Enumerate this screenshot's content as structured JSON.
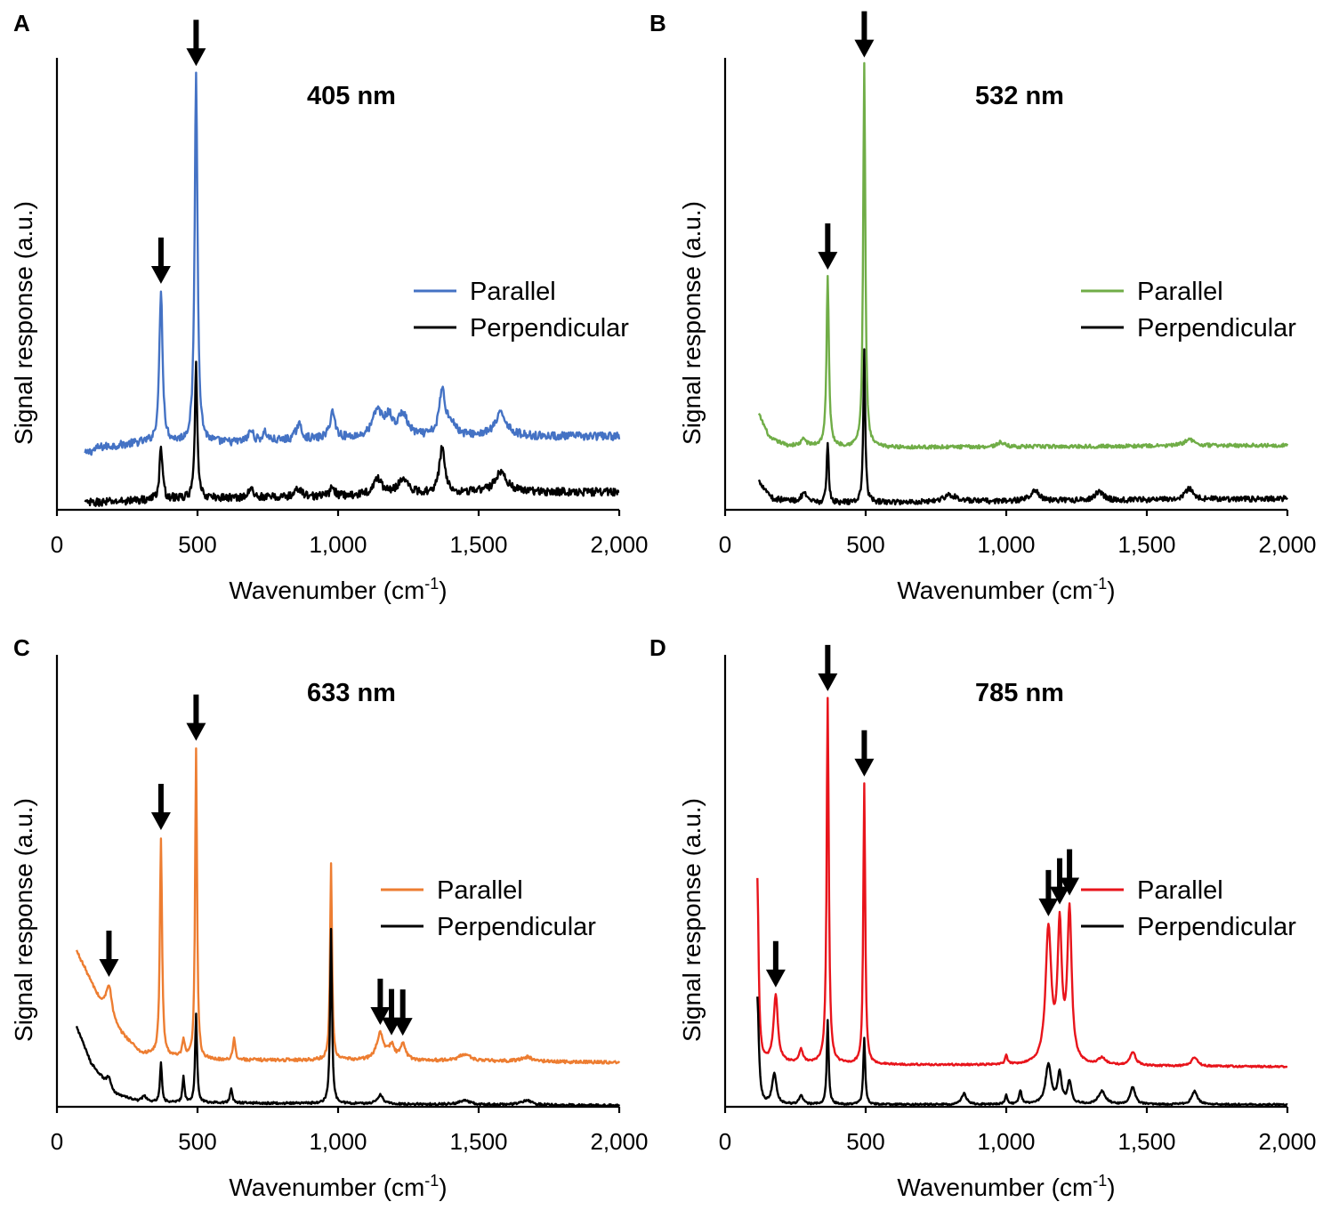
{
  "figure": {
    "background": "#ffffff",
    "arrow_color": "#000000"
  },
  "chart_data": [
    {
      "type": "line",
      "panel": "A",
      "title": "405 nm",
      "xlabel": "Wavenumber (cm",
      "xlabel_sup": "-1",
      "xlabel_close": ")",
      "ylabel": "Signal response (a.u.)",
      "xlim": [
        0,
        2000
      ],
      "xticks": [
        0,
        500,
        1000,
        1500,
        2000
      ],
      "xtick_labels": [
        "0",
        "500",
        "1,000",
        "1,500",
        "2,000"
      ],
      "ylim": [
        0,
        100
      ],
      "x_range": [
        100,
        2000
      ],
      "legend": [
        "Parallel",
        "Perpendicular"
      ],
      "series": [
        {
          "name": "Parallel",
          "color": "#4472c4",
          "baseline": 12,
          "noise": 0.9,
          "baseline_points": [
            [
              100,
              12.5
            ],
            [
              150,
              14
            ],
            [
              300,
              15
            ],
            [
              600,
              15
            ],
            [
              1000,
              16
            ],
            [
              1500,
              16.5
            ],
            [
              2000,
              16.5
            ]
          ],
          "peaks": [
            [
              370,
              34,
              7
            ],
            [
              495,
              83,
              6
            ],
            [
              690,
              2.5,
              10
            ],
            [
              740,
              2,
              10
            ],
            [
              860,
              3.5,
              12
            ],
            [
              980,
              6,
              11
            ],
            [
              1140,
              6,
              20
            ],
            [
              1180,
              4,
              15
            ],
            [
              1230,
              5,
              20
            ],
            [
              1370,
              10,
              12
            ],
            [
              1400,
              3,
              20
            ],
            [
              1580,
              5,
              25
            ]
          ]
        },
        {
          "name": "Perpendicular",
          "color": "#000000",
          "baseline": 2,
          "noise": 0.9,
          "baseline_points": [
            [
              100,
              1.5
            ],
            [
              400,
              2.5
            ],
            [
              1000,
              3
            ],
            [
              1500,
              4
            ],
            [
              2000,
              4
            ]
          ],
          "peaks": [
            [
              370,
              12,
              6
            ],
            [
              495,
              30,
              5
            ],
            [
              690,
              2,
              10
            ],
            [
              860,
              2,
              12
            ],
            [
              980,
              2,
              10
            ],
            [
              1140,
              3.5,
              20
            ],
            [
              1230,
              3.5,
              20
            ],
            [
              1370,
              10,
              12
            ],
            [
              1580,
              4.5,
              25
            ]
          ]
        }
      ],
      "arrows": [
        370,
        495
      ]
    },
    {
      "type": "line",
      "panel": "B",
      "title": "532 nm",
      "xlabel": "Wavenumber (cm",
      "xlabel_sup": "-1",
      "xlabel_close": ")",
      "ylabel": "Signal response (a.u.)",
      "xlim": [
        0,
        2000
      ],
      "xticks": [
        0,
        500,
        1000,
        1500,
        2000
      ],
      "xtick_labels": [
        "0",
        "500",
        "1,000",
        "1,500",
        "2,000"
      ],
      "ylim": [
        0,
        100
      ],
      "x_range": [
        120,
        2000
      ],
      "legend": [
        "Parallel",
        "Perpendicular"
      ],
      "series": [
        {
          "name": "Parallel",
          "color": "#70ad47",
          "baseline": 14,
          "noise": 0.4,
          "baseline_points": [
            [
              120,
              21.5
            ],
            [
              160,
              16
            ],
            [
              220,
              14.5
            ],
            [
              500,
              14
            ],
            [
              2000,
              14.5
            ]
          ],
          "peaks": [
            [
              365,
              38,
              5
            ],
            [
              495,
              86,
              4.5
            ],
            [
              280,
              1.5,
              10
            ],
            [
              980,
              1,
              15
            ],
            [
              1650,
              1.5,
              20
            ]
          ]
        },
        {
          "name": "Perpendicular",
          "color": "#000000",
          "baseline": 2,
          "noise": 0.6,
          "baseline_points": [
            [
              120,
              6.5
            ],
            [
              170,
              2.5
            ],
            [
              300,
              1.5
            ],
            [
              2000,
              2.5
            ]
          ],
          "peaks": [
            [
              365,
              14,
              4
            ],
            [
              495,
              34,
              4
            ],
            [
              280,
              2,
              12
            ],
            [
              800,
              1.5,
              30
            ],
            [
              1100,
              2.5,
              18
            ],
            [
              1330,
              2,
              18
            ],
            [
              1650,
              2.5,
              18
            ]
          ]
        }
      ],
      "arrows": [
        365,
        495
      ]
    },
    {
      "type": "line",
      "panel": "C",
      "title": "633 nm",
      "xlabel": "Wavenumber (cm",
      "xlabel_sup": "-1",
      "xlabel_close": ")",
      "ylabel": "Signal response (a.u.)",
      "xlim": [
        0,
        2000
      ],
      "xticks": [
        0,
        500,
        1000,
        1500,
        2000
      ],
      "xtick_labels": [
        "0",
        "500",
        "1,000",
        "1,500",
        "2,000"
      ],
      "ylim": [
        0,
        100
      ],
      "x_range": [
        70,
        2000
      ],
      "legend": [
        "Parallel",
        "Perpendicular"
      ],
      "series": [
        {
          "name": "Parallel",
          "color": "#ed7d31",
          "baseline": 10,
          "noise": 0.35,
          "baseline_points": [
            [
              70,
              35
            ],
            [
              100,
              31
            ],
            [
              150,
              24
            ],
            [
              220,
              17
            ],
            [
              300,
              12
            ],
            [
              500,
              10.5
            ],
            [
              1000,
              10.5
            ],
            [
              2000,
              10
            ]
          ],
          "peaks": [
            [
              185,
              7,
              12
            ],
            [
              370,
              49,
              4.5
            ],
            [
              450,
              4,
              5
            ],
            [
              495,
              70,
              4
            ],
            [
              630,
              5,
              5
            ],
            [
              975,
              44,
              4
            ],
            [
              1150,
              6,
              15
            ],
            [
              1190,
              3,
              12
            ],
            [
              1230,
              3.5,
              12
            ],
            [
              1450,
              1.5,
              25
            ],
            [
              1670,
              1,
              25
            ]
          ]
        },
        {
          "name": "Perpendicular",
          "color": "#000000",
          "baseline": 0.5,
          "noise": 0.25,
          "baseline_points": [
            [
              70,
              18
            ],
            [
              120,
              10
            ],
            [
              200,
              3
            ],
            [
              300,
              1
            ],
            [
              2000,
              0.3
            ]
          ],
          "peaks": [
            [
              185,
              2.5,
              10
            ],
            [
              310,
              1.5,
              10
            ],
            [
              370,
              9,
              4
            ],
            [
              450,
              6,
              4
            ],
            [
              495,
              20,
              4
            ],
            [
              620,
              3,
              5
            ],
            [
              975,
              39,
              4
            ],
            [
              1150,
              2,
              12
            ],
            [
              1450,
              1,
              20
            ],
            [
              1670,
              1,
              20
            ]
          ]
        }
      ],
      "arrows": [
        185,
        370,
        495,
        1150,
        1190,
        1230
      ]
    },
    {
      "type": "line",
      "panel": "D",
      "title": "785 nm",
      "xlabel": "Wavenumber (cm",
      "xlabel_sup": "-1",
      "xlabel_close": ")",
      "ylabel": "Signal response (a.u.)",
      "xlim": [
        0,
        2000
      ],
      "xticks": [
        0,
        500,
        1000,
        1500,
        2000
      ],
      "xtick_labels": [
        "0",
        "500",
        "1,000",
        "1,500",
        "2,000"
      ],
      "ylim": [
        0,
        100
      ],
      "x_range": [
        115,
        2000
      ],
      "legend": [
        "Parallel",
        "Perpendicular"
      ],
      "series": [
        {
          "name": "Parallel",
          "color": "#e8141b",
          "baseline": 9,
          "noise": 0.2,
          "baseline_points": [
            [
              115,
              10
            ],
            [
              500,
              9.5
            ],
            [
              2000,
              9
            ]
          ],
          "peaks": [
            [
              115,
              41,
              5
            ],
            [
              180,
              15,
              9
            ],
            [
              270,
              3,
              8
            ],
            [
              365,
              82,
              4.5
            ],
            [
              495,
              63,
              4
            ],
            [
              1000,
              2,
              5
            ],
            [
              1150,
              30,
              12
            ],
            [
              1190,
              30,
              9
            ],
            [
              1225,
              34,
              9
            ],
            [
              1340,
              1.5,
              15
            ],
            [
              1450,
              3,
              12
            ],
            [
              1670,
              2,
              12
            ]
          ]
        },
        {
          "name": "Perpendicular",
          "color": "#000000",
          "baseline": 0.5,
          "noise": 0.2,
          "baseline_points": [
            [
              115,
              0.5
            ],
            [
              2000,
              0.5
            ]
          ],
          "peaks": [
            [
              115,
              24,
              6
            ],
            [
              175,
              7,
              9
            ],
            [
              270,
              2,
              8
            ],
            [
              365,
              19,
              4
            ],
            [
              495,
              15,
              4
            ],
            [
              850,
              2.5,
              10
            ],
            [
              1000,
              2,
              5
            ],
            [
              1050,
              3,
              6
            ],
            [
              1150,
              9,
              12
            ],
            [
              1190,
              7,
              8
            ],
            [
              1225,
              5,
              8
            ],
            [
              1340,
              3,
              15
            ],
            [
              1450,
              4,
              10
            ],
            [
              1670,
              3,
              12
            ]
          ]
        }
      ],
      "arrows": [
        180,
        365,
        495,
        1150,
        1190,
        1225
      ]
    }
  ]
}
